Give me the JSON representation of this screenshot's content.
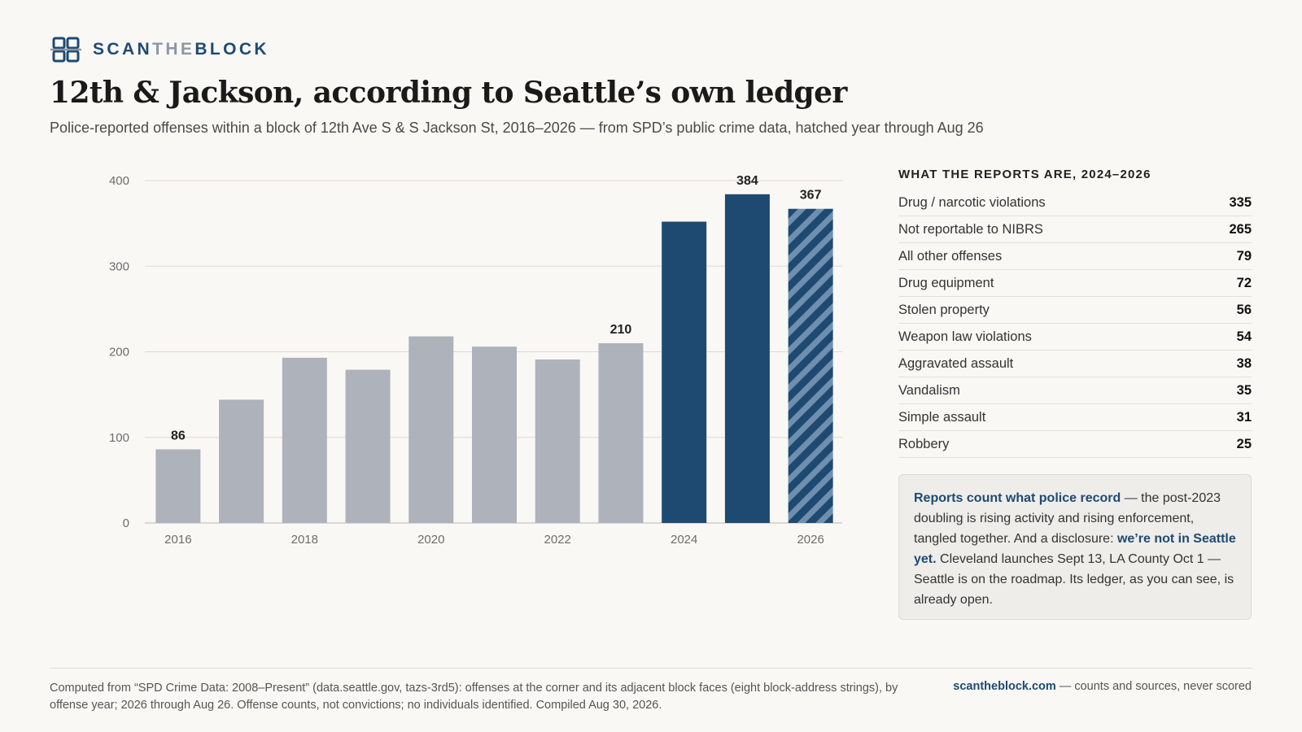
{
  "brand": {
    "part1": "SCAN",
    "part2": "THE",
    "part3": "BLOCK"
  },
  "title": "12th & Jackson, according to Seattle’s own ledger",
  "subtitle": "Police-reported offenses within a block of 12th Ave S & S Jackson St, 2016–2026 — from SPD’s public crime data, hatched year through Aug 26",
  "colors": {
    "accent": "#1e4a72",
    "muted_bar": "#adb2bb",
    "hatch_light": "#6f8fae"
  },
  "chart_data": {
    "type": "bar",
    "categories": [
      "2016",
      "2017",
      "2018",
      "2019",
      "2020",
      "2021",
      "2022",
      "2023",
      "2024",
      "2025",
      "2026"
    ],
    "values": [
      86,
      144,
      193,
      179,
      218,
      206,
      191,
      210,
      352,
      384,
      367
    ],
    "value_labels": {
      "2016": "86",
      "2023": "210",
      "2025": "384",
      "2026": "367"
    },
    "x_tick_labels": [
      "2016",
      "2018",
      "2020",
      "2022",
      "2024",
      "2026"
    ],
    "y_ticks": [
      0,
      100,
      200,
      300,
      400
    ],
    "ylim": [
      0,
      400
    ],
    "grid": true,
    "highlighted_years": [
      "2024",
      "2025",
      "2026"
    ],
    "partial_year": "2026"
  },
  "side": {
    "heading": "WHAT THE REPORTS ARE, 2024–2026",
    "rows": [
      {
        "label": "Drug / narcotic violations",
        "value": "335"
      },
      {
        "label": "Not reportable to NIBRS",
        "value": "265"
      },
      {
        "label": "All other offenses",
        "value": "79"
      },
      {
        "label": "Drug equipment",
        "value": "72"
      },
      {
        "label": "Stolen property",
        "value": "56"
      },
      {
        "label": "Weapon law violations",
        "value": "54"
      },
      {
        "label": "Aggravated assault",
        "value": "38"
      },
      {
        "label": "Vandalism",
        "value": "35"
      },
      {
        "label": "Simple assault",
        "value": "31"
      },
      {
        "label": "Robbery",
        "value": "25"
      }
    ]
  },
  "note": {
    "lead": "Reports count what police record",
    "text1": " — the post-2023 doubling is rising activity and rising enforcement, tangled together. And a disclosure: ",
    "hl2": "we’re not in Seattle yet.",
    "text2": " Cleveland launches Sept 13, LA County Oct 1 — Seattle is on the roadmap. Its ledger, as you can see, is already open."
  },
  "footer": {
    "left": "Computed from “SPD Crime Data: 2008–Present” (data.seattle.gov, tazs-3rd5): offenses at the corner and its adjacent block faces (eight block-address strings), by offense year; 2026 through Aug 26. Offense counts, not convictions; no individuals identified. Compiled Aug 30, 2026.",
    "site": "scantheblock.com",
    "tagline": " — counts and sources, never scored"
  }
}
